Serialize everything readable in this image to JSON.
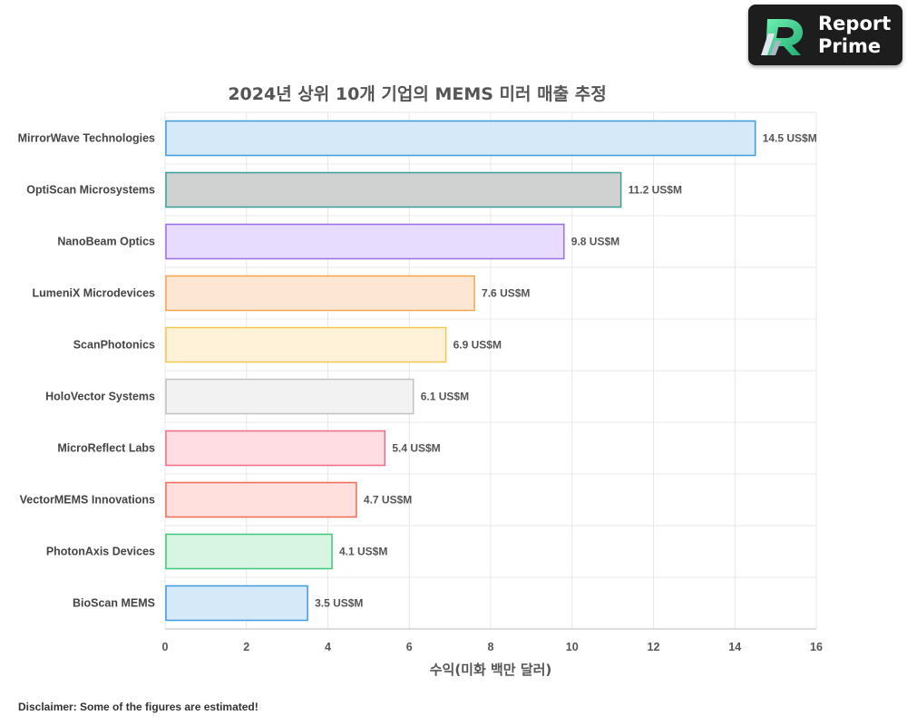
{
  "logo": {
    "line1": "Report",
    "line2": "Prime"
  },
  "disclaimer": "Disclaimer: Some of the figures are estimated!",
  "chart_data": {
    "type": "bar",
    "orientation": "horizontal",
    "title": "2024년 상위 10개 기업의 MEMS 미러 매출 추정",
    "xlabel": "수익(미화 백만 달러)",
    "ylabel": "",
    "xlim": [
      0,
      16
    ],
    "xticks": [
      0,
      2,
      4,
      6,
      8,
      10,
      12,
      14,
      16
    ],
    "grid": true,
    "value_suffix": " US$M",
    "categories": [
      "MirrorWave Technologies",
      "OptiScan Microsystems",
      "NanoBeam Optics",
      "LumeniX Microdevices",
      "ScanPhotonics",
      "HoloVector Systems",
      "MicroReflect Labs",
      "VectorMEMS Innovations",
      "PhotonAxis Devices",
      "BioScan MEMS"
    ],
    "values": [
      14.5,
      11.2,
      9.8,
      7.6,
      6.9,
      6.1,
      5.4,
      4.7,
      4.1,
      3.5
    ],
    "data_labels": [
      "14.5 US$M",
      "11.2 US$M",
      "9.8 US$M",
      "7.6 US$M",
      "6.9 US$M",
      "6.1 US$M",
      "5.4 US$M",
      "4.7 US$M",
      "4.1 US$M",
      "3.5 US$M"
    ],
    "colors": [
      {
        "fill": "#d6e9f8",
        "stroke": "#3d9be0"
      },
      {
        "fill": "#d0d1d1",
        "stroke": "#3a9f9b"
      },
      {
        "fill": "#e7dcfd",
        "stroke": "#9a6fe8"
      },
      {
        "fill": "#fde7d4",
        "stroke": "#f1a64e"
      },
      {
        "fill": "#fff2d8",
        "stroke": "#f4c74f"
      },
      {
        "fill": "#f2f2f2",
        "stroke": "#c2c2c2"
      },
      {
        "fill": "#ffdde3",
        "stroke": "#ef6b86"
      },
      {
        "fill": "#ffe0dc",
        "stroke": "#f26a55"
      },
      {
        "fill": "#d8f4e3",
        "stroke": "#3dc879"
      },
      {
        "fill": "#d6e9f8",
        "stroke": "#3d9be0"
      }
    ]
  }
}
